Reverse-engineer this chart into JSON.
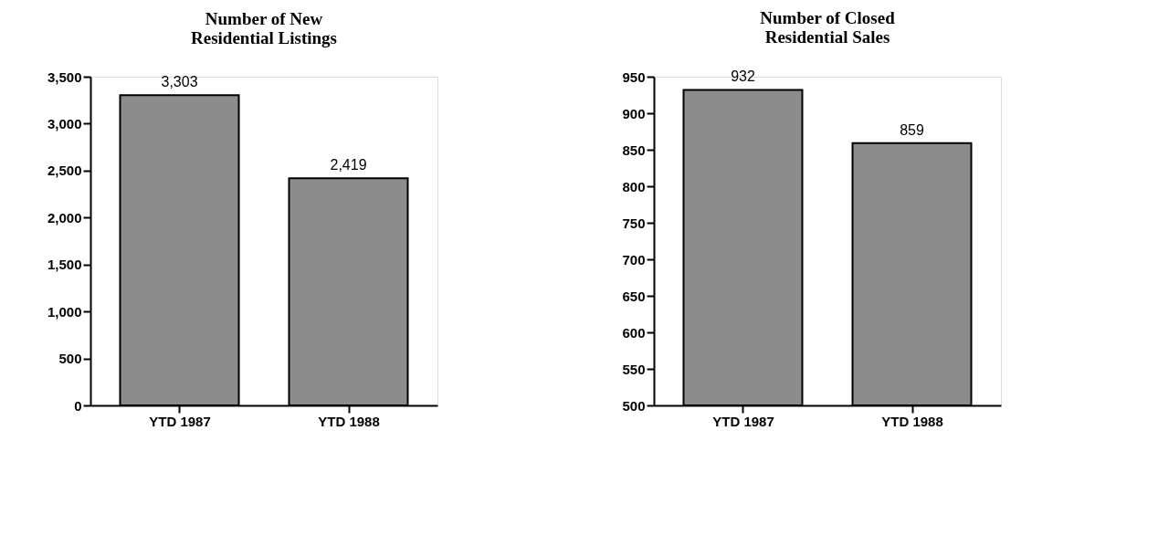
{
  "chart_data": [
    {
      "type": "bar",
      "title": "Number of New\nResidential Listings",
      "categories": [
        "YTD 1987",
        "YTD 1988"
      ],
      "values": [
        3303,
        2419
      ],
      "value_labels": [
        "3,303",
        "2,419"
      ],
      "color": "#8c8c8c",
      "ylim": [
        0,
        3500
      ],
      "yticks": [
        0,
        500,
        {
          "value": 1000,
          "label": "1,000"
        },
        {
          "value": 1500,
          "label": "1,500"
        },
        {
          "value": 2000,
          "label": "2,000"
        },
        {
          "value": 2500,
          "label": "2,500"
        },
        {
          "value": 3000,
          "label": "3,000"
        },
        {
          "value": 3500,
          "label": "3,500"
        }
      ],
      "grid": false
    },
    {
      "type": "bar",
      "title": "Number of Closed\nResidential Sales",
      "categories": [
        "YTD 1987",
        "YTD 1988"
      ],
      "values": [
        932,
        859
      ],
      "data_labels": true,
      "color": "#8c8c8c",
      "ylim": [
        500,
        950
      ],
      "yticks": [
        500,
        550,
        600,
        650,
        700,
        750,
        800,
        850,
        900,
        950
      ],
      "grid": false
    }
  ]
}
